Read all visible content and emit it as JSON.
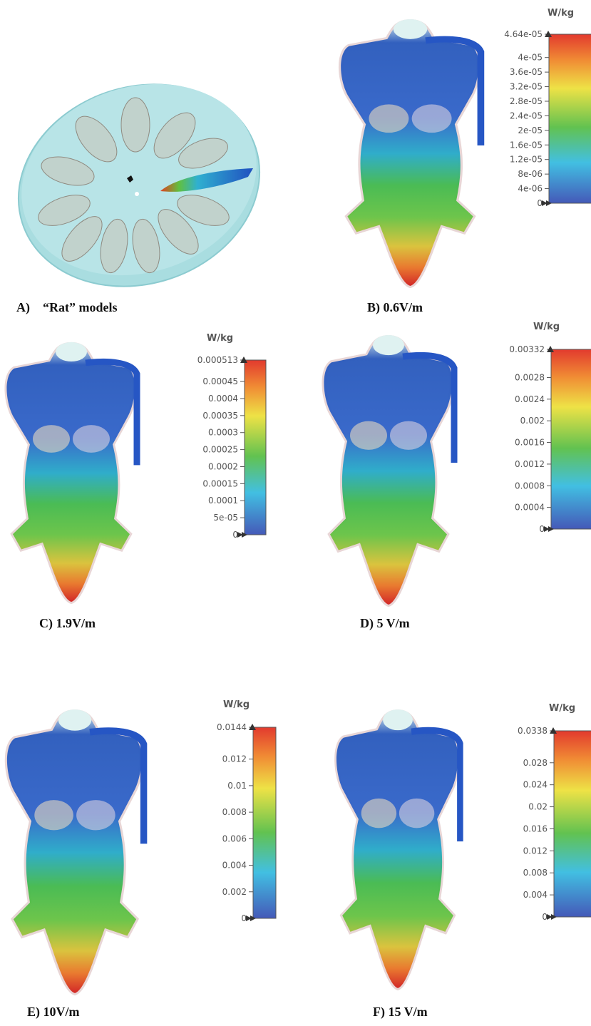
{
  "panels": [
    {
      "caption": "A)    “Rat” models"
    },
    {
      "caption": "B) 0.6V/m",
      "colorbar": {
        "unit": "W/kg",
        "range": [
          0,
          4.64e-05
        ],
        "ticks": [
          {
            "value": 4.64e-05,
            "label": "4.64e-05"
          },
          {
            "value": 4e-05,
            "label": "4e-05"
          },
          {
            "value": 3.6e-05,
            "label": "3.6e-05"
          },
          {
            "value": 3.2e-05,
            "label": "3.2e-05"
          },
          {
            "value": 2.8e-05,
            "label": "2.8e-05"
          },
          {
            "value": 2.4e-05,
            "label": "2.4e-05"
          },
          {
            "value": 2e-05,
            "label": "2e-05"
          },
          {
            "value": 1.6e-05,
            "label": "1.6e-05"
          },
          {
            "value": 1.2e-05,
            "label": "1.2e-05"
          },
          {
            "value": 8e-06,
            "label": "8e-06"
          },
          {
            "value": 4e-06,
            "label": "4e-06"
          },
          0
        ]
      }
    },
    {
      "caption": "C) 1.9V/m",
      "colorbar": {
        "unit": "W/kg",
        "range": [
          0,
          0.000513
        ],
        "ticks": [
          0.000513,
          0.00045,
          0.0004,
          0.00035,
          0.0003,
          0.00025,
          0.0002,
          0.00015,
          0.0001,
          {
            "value": 5e-05,
            "label": "5e-05"
          },
          0
        ]
      }
    },
    {
      "caption": "D) 5 V/m",
      "colorbar": {
        "unit": "W/kg",
        "range": [
          0,
          0.00332
        ],
        "ticks": [
          0.00332,
          0.0028,
          0.0024,
          0.002,
          0.0016,
          0.0012,
          0.0008,
          0.0004,
          0
        ]
      }
    },
    {
      "caption": "E) 10V/m",
      "colorbar": {
        "unit": "W/kg",
        "range": [
          0,
          0.0144
        ],
        "ticks": [
          0.0144,
          0.012,
          0.01,
          0.008,
          0.006,
          0.004,
          0.002,
          0
        ]
      }
    },
    {
      "caption": "F) 15 V/m",
      "colorbar": {
        "unit": "W/kg",
        "range": [
          0,
          0.0338
        ],
        "ticks": [
          0.0338,
          0.028,
          0.024,
          0.02,
          0.016,
          0.012,
          0.008,
          0.004,
          0
        ]
      }
    }
  ]
}
